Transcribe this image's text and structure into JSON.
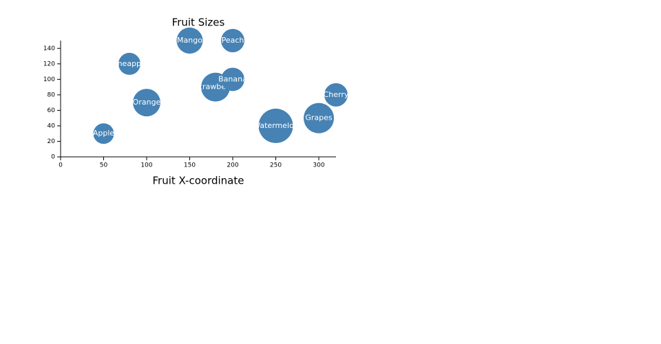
{
  "chart_data": {
    "type": "bubble",
    "title": "Fruit Sizes",
    "x_label": "Fruit X-coordinate",
    "color": "#4682b4",
    "categories": [
      "Apple",
      "Pineapple",
      "Orange",
      "Mango",
      "Peach",
      "Strawberry",
      "Banana",
      "Watermelon",
      "Grapes",
      "Cherry"
    ],
    "x": [
      50,
      80,
      100,
      150,
      200,
      180,
      200,
      250,
      300,
      320
    ],
    "y": [
      30,
      120,
      70,
      150,
      150,
      90,
      100,
      40,
      50,
      80
    ],
    "sizes": [
      15,
      16,
      20,
      19,
      17,
      21,
      17,
      25,
      22,
      17
    ],
    "xlim": [
      0,
      320
    ],
    "xticks": [
      0,
      50,
      100,
      150,
      200,
      250,
      300
    ],
    "ylim": [
      0,
      150
    ],
    "yticks": [
      0,
      20,
      40,
      60,
      80,
      100,
      120,
      140
    ]
  }
}
